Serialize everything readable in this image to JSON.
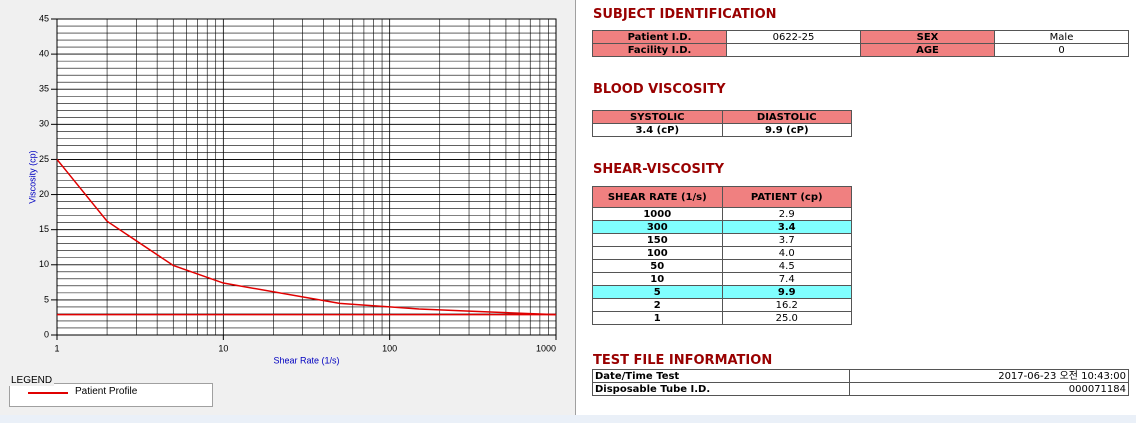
{
  "chart_data": {
    "type": "line",
    "x_label": "Shear Rate (1/s)",
    "y_label": "Viscosity (cp)",
    "x_log": true,
    "xlim": [
      1,
      1000
    ],
    "xticks": [
      1,
      10,
      100,
      1000
    ],
    "ylim": [
      0,
      45
    ],
    "yticks": [
      0,
      5,
      10,
      15,
      20,
      25,
      30,
      35,
      40,
      45
    ],
    "grid": true,
    "minor_grid": true,
    "series": [
      {
        "name": "Patient Profile",
        "color": "#e00000",
        "x": [
          1,
          2,
          5,
          10,
          50,
          100,
          150,
          300,
          1000
        ],
        "values": [
          25.0,
          16.2,
          9.9,
          7.4,
          4.5,
          4.0,
          3.7,
          3.4,
          2.9
        ]
      },
      {
        "color": "#e00000",
        "x": [
          1,
          1000
        ],
        "values": [
          2.9,
          2.9
        ]
      }
    ]
  },
  "legend": {
    "title": "LEGEND"
  },
  "subject": {
    "title": "SUBJECT IDENTIFICATION",
    "rows": [
      [
        "Patient I.D.",
        "0622-25",
        "SEX",
        "Male"
      ],
      [
        "Facility I.D.",
        null,
        "AGE",
        "0"
      ]
    ]
  },
  "blood": {
    "title": "BLOOD VISCOSITY",
    "headers": [
      "SYSTOLIC",
      "DIASTOLIC"
    ],
    "values": [
      "3.4 (cP)",
      "9.9 (cP)"
    ]
  },
  "shear": {
    "title": "SHEAR-VISCOSITY",
    "headers": [
      "SHEAR RATE (1/s)",
      "PATIENT (cp)"
    ],
    "rows": [
      {
        "rate": "1000",
        "patient": "2.9",
        "highlight": false
      },
      {
        "rate": "300",
        "patient": "3.4",
        "highlight": true
      },
      {
        "rate": "150",
        "patient": "3.7",
        "highlight": false
      },
      {
        "rate": "100",
        "patient": "4.0",
        "highlight": false
      },
      {
        "rate": "50",
        "patient": "4.5",
        "highlight": false
      },
      {
        "rate": "10",
        "patient": "7.4",
        "highlight": false
      },
      {
        "rate": "5",
        "patient": "9.9",
        "highlight": true
      },
      {
        "rate": "2",
        "patient": "16.2",
        "highlight": false
      },
      {
        "rate": "1",
        "patient": "25.0",
        "highlight": false
      }
    ]
  },
  "test_file": {
    "title": "TEST FILE INFORMATION",
    "rows": [
      [
        "Date/Time Test",
        "2017-06-23  오전 10:43:00"
      ],
      [
        "Disposable Tube I.D.",
        "000071184"
      ]
    ]
  }
}
